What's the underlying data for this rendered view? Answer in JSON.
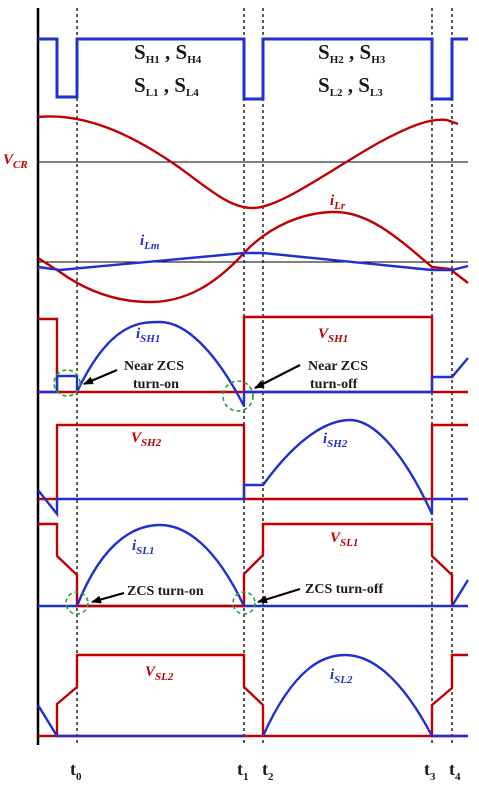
{
  "colors": {
    "blue": "#1f2fd0",
    "red": "#c00000",
    "black": "#000000",
    "circle": "#2e9e3e"
  },
  "gate_labels": {
    "left_top": {
      "a": "S",
      "a_sub": "H1",
      "sep": " , ",
      "b": "S",
      "b_sub": "H4"
    },
    "left_bottom": {
      "a": "S",
      "a_sub": "L1",
      "sep": " , ",
      "b": "S",
      "b_sub": "L4"
    },
    "right_top": {
      "a": "S",
      "a_sub": "H2",
      "sep": " , ",
      "b": "S",
      "b_sub": "H3"
    },
    "right_bottom": {
      "a": "S",
      "a_sub": "L2",
      "sep": " , ",
      "b": "S",
      "b_sub": "L3"
    }
  },
  "signals": {
    "vcr": {
      "main": "V",
      "sub": "CR"
    },
    "ilr": {
      "main": "i",
      "sub": "Lr"
    },
    "ilm": {
      "main": "i",
      "sub": "Lm"
    },
    "ish1": {
      "main": "i",
      "sub": "SH1"
    },
    "vsh1": {
      "main": "V",
      "sub": "SH1"
    },
    "vsh2": {
      "main": "V",
      "sub": "SH2"
    },
    "ish2": {
      "main": "i",
      "sub": "SH2"
    },
    "isl1": {
      "main": "i",
      "sub": "SL1"
    },
    "vsl1": {
      "main": "V",
      "sub": "SL1"
    },
    "vsl2": {
      "main": "V",
      "sub": "SL2"
    },
    "isl2": {
      "main": "i",
      "sub": "SL2"
    }
  },
  "annotations": {
    "near_zcs_on": [
      "Near ZCS",
      "turn-on"
    ],
    "near_zcs_off": [
      "Near ZCS",
      "turn-off"
    ],
    "zcs_on": "ZCS turn-on",
    "zcs_off": "ZCS turn-off"
  },
  "time_labels": {
    "t0": {
      "main": "t",
      "sub": "0"
    },
    "t1": {
      "main": "t",
      "sub": "1"
    },
    "t2": {
      "main": "t",
      "sub": "2"
    },
    "t3": {
      "main": "t",
      "sub": "3"
    },
    "t4": {
      "main": "t",
      "sub": "4"
    }
  }
}
